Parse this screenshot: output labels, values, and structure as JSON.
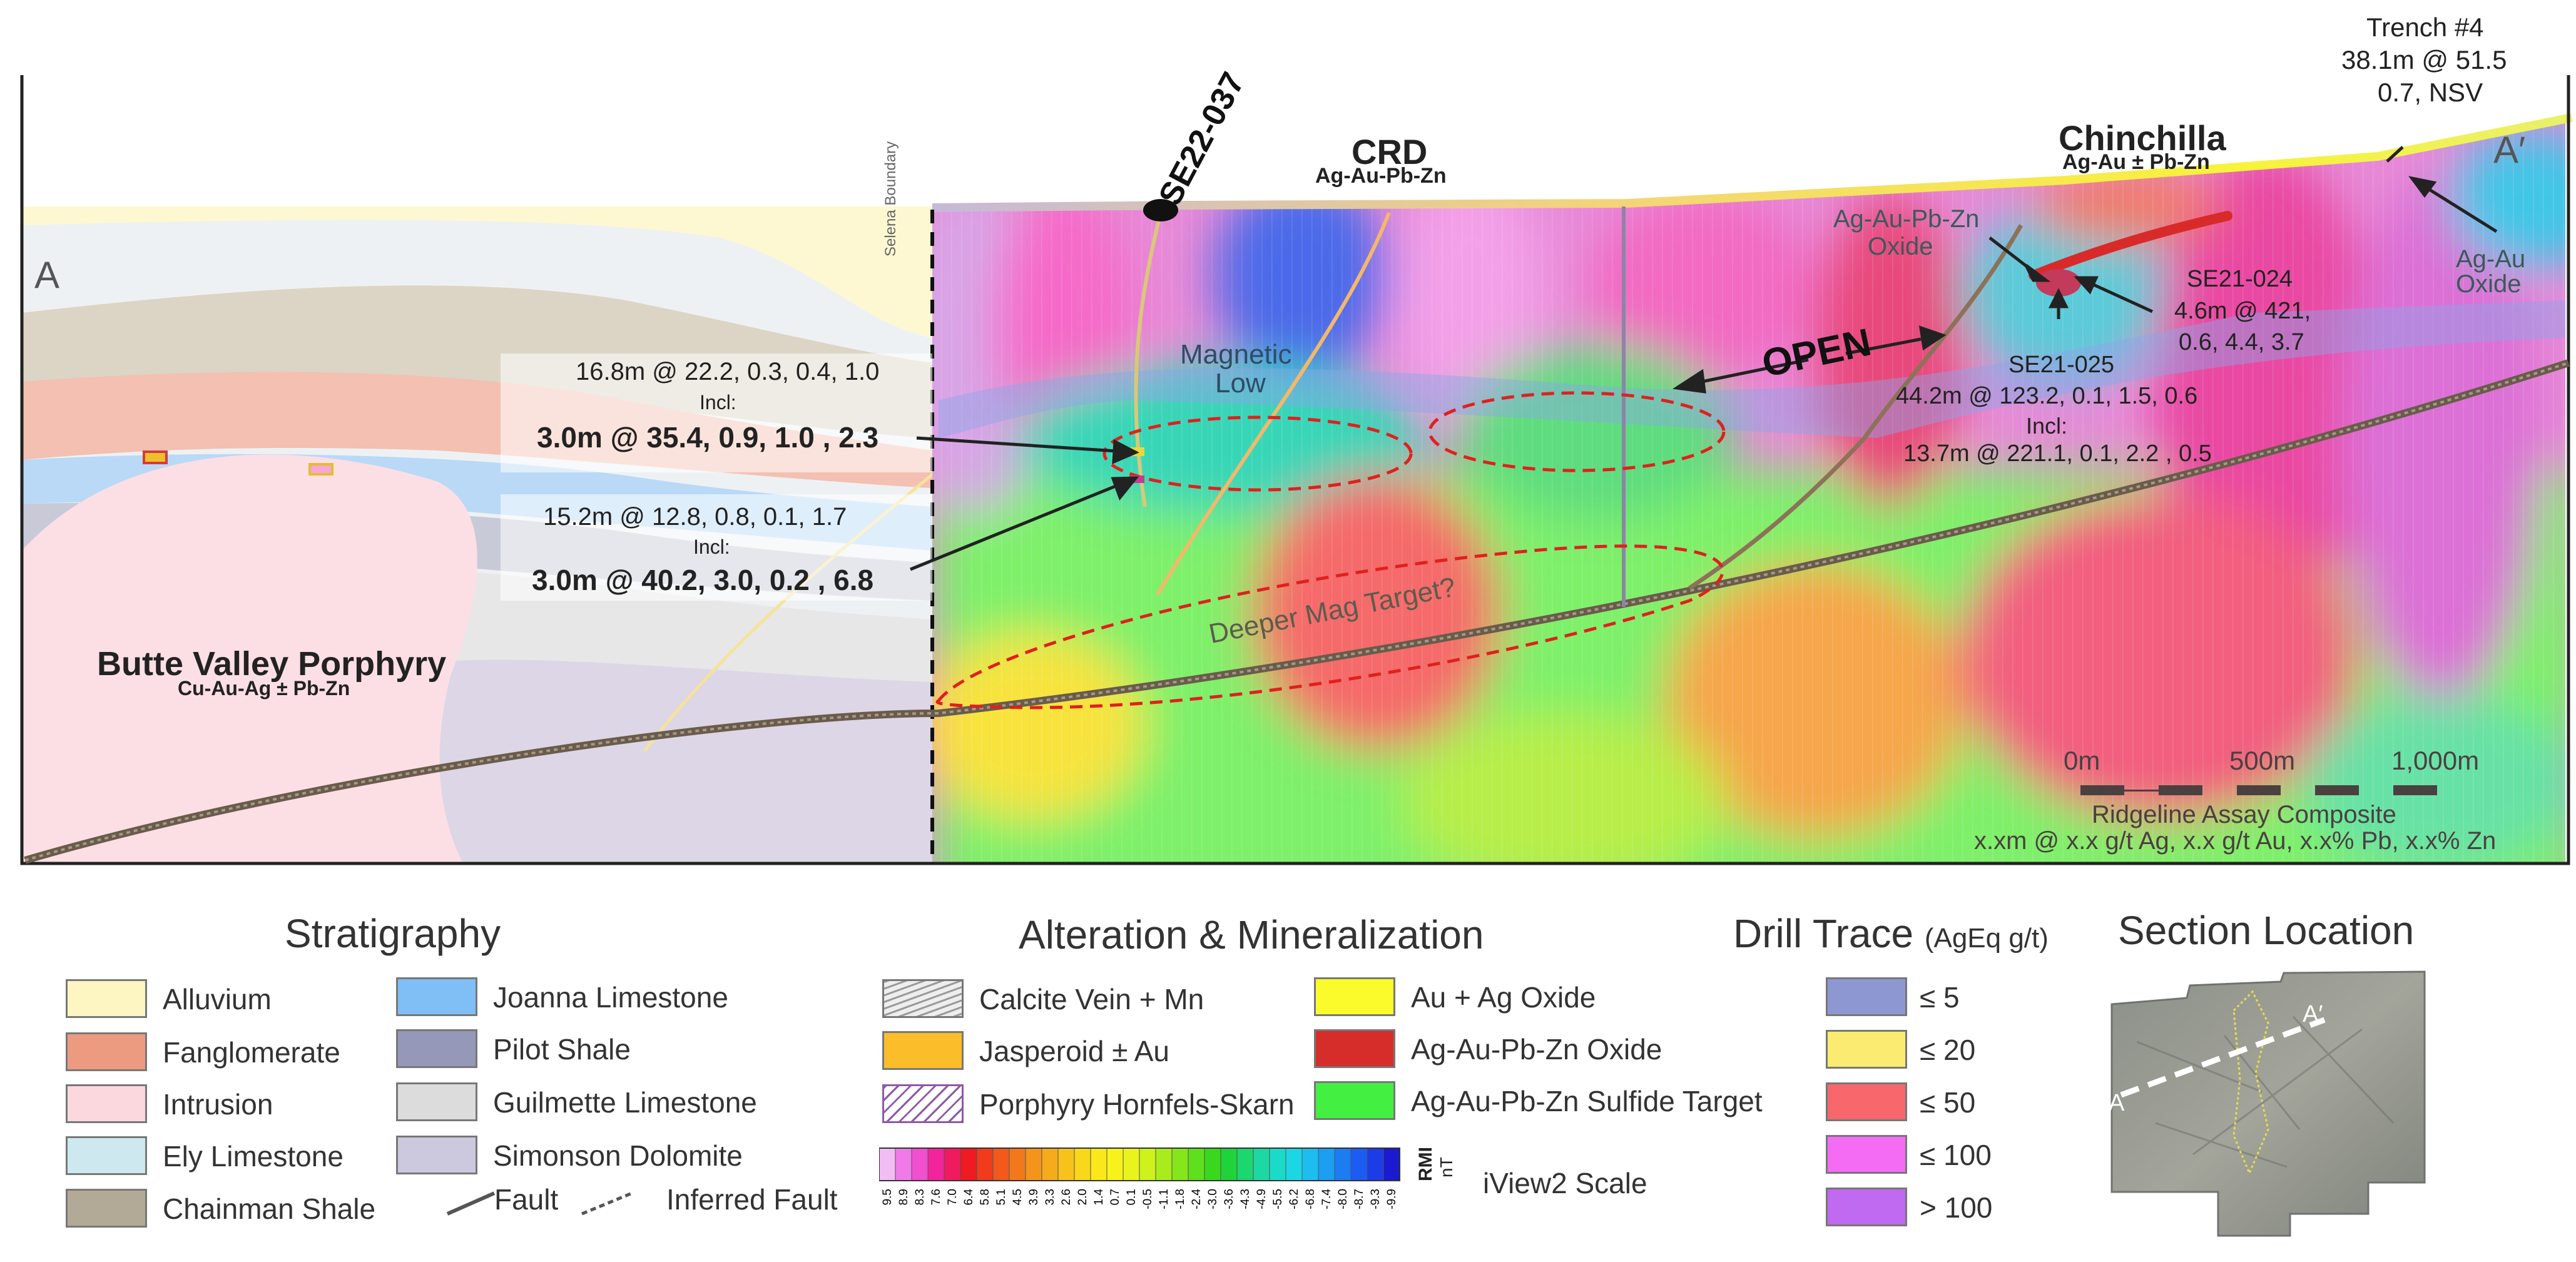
{
  "section": {
    "end_left": "A",
    "end_right": "A′",
    "boundary": "Selena Boundary",
    "drillhole": "SE22-037",
    "crd_title": "CRD",
    "crd_sub": "Ag-Au-Pb-Zn",
    "chinchilla_title": "Chinchilla",
    "chinchilla_sub": "Ag-Au ± Pb-Zn",
    "trench_title": "Trench #4",
    "trench_line1": "38.1m @ 51.5",
    "trench_line2": "0.7, NSV",
    "oxide_label_1": "Ag-Au-Pb-Zn",
    "oxide_label_2": "Oxide",
    "agau_oxide_1": "Ag-Au",
    "agau_oxide_2": "Oxide",
    "se21_024_title": "SE21-024",
    "se21_024_l1": "4.6m @ 421,",
    "se21_024_l2": "0.6, 4.4, 3.7",
    "se21_025_title": "SE21-025",
    "se21_025_l1": "44.2m @ 123.2, 0.1, 1.5, 0.6",
    "se21_025_l2": "Incl:",
    "se21_025_l3": "13.7m @ 221.1, 0.1, 2.2 , 0.5",
    "mag_low_1": "Magnetic",
    "mag_low_2": "Low",
    "open_label": "OPEN",
    "deeper": "Deeper Mag Target?",
    "box1_l1": "16.8m @ 22.2, 0.3, 0.4, 1.0",
    "box1_l2": "Incl:",
    "box1_l3": "3.0m @ 35.4, 0.9, 1.0 , 2.3",
    "box2_l1": "15.2m @ 12.8, 0.8, 0.1, 1.7",
    "box2_l2": "Incl:",
    "box2_l3": "3.0m @ 40.2, 3.0, 0.2 , 6.8",
    "porphyry_title": "Butte Valley Porphyry",
    "porphyry_sub": "Cu-Au-Ag ± Pb-Zn",
    "scale_0": "0m",
    "scale_500": "500m",
    "scale_1000": "1,000m",
    "assay_title": "Ridgeline Assay Composite",
    "assay_format": "x.xm @ x.x g/t Ag, x.x g/t Au, x.x% Pb, x.x% Zn"
  },
  "stratigraphy": {
    "title": "Stratigraphy",
    "units": [
      {
        "label": "Alluvium",
        "color": "#fdf5c2"
      },
      {
        "label": "Fanglomerate",
        "color": "#ec9a80"
      },
      {
        "label": "Intrusion",
        "color": "#fbd7de"
      },
      {
        "label": "Ely Limestone",
        "color": "#cde8ef"
      },
      {
        "label": "Chainman Shale",
        "color": "#b3a997"
      },
      {
        "label": "Joanna Limestone",
        "color": "#7fbff6"
      },
      {
        "label": "Pilot Shale",
        "color": "#9598b8"
      },
      {
        "label": "Guilmette Limestone",
        "color": "#dcdcdc"
      },
      {
        "label": "Simonson Dolomite",
        "color": "#ccc9de"
      }
    ],
    "fault": "Fault",
    "inferred_fault": "Inferred Fault"
  },
  "alteration": {
    "title": "Alteration & Mineralization",
    "items": [
      {
        "label": "Calcite Vein + Mn",
        "color": "#dddddd"
      },
      {
        "label": "Jasperoid ± Au",
        "color": "#fbbd2a"
      },
      {
        "label": "Porphyry Hornfels-Skarn",
        "color": "#ffffff"
      },
      {
        "label": "Au + Ag Oxide",
        "color": "#fbfb2c"
      },
      {
        "label": "Ag-Au-Pb-Zn Oxide",
        "color": "#d72d2a"
      },
      {
        "label": "Ag-Au-Pb-Zn Sulfide Target",
        "color": "#43f042"
      }
    ],
    "rmi_label": "RMI",
    "rmi_unit": "nT",
    "scale_name": "iView2 Scale",
    "ticks": [
      "9.5",
      "8.9",
      "8.3",
      "7.6",
      "7.0",
      "6.4",
      "5.8",
      "5.1",
      "4.5",
      "3.9",
      "3.3",
      "2.6",
      "2.0",
      "1.4",
      "0.7",
      "0.1",
      "-0.5",
      "-1.1",
      "-1.8",
      "-2.4",
      "-3.0",
      "-3.6",
      "-4.3",
      "-4.9",
      "-5.5",
      "-6.2",
      "-6.8",
      "-7.4",
      "-8.0",
      "-8.7",
      "-9.3",
      "-9.9"
    ]
  },
  "drill_trace": {
    "title": "Drill Trace",
    "unit": "(AgEq g/t)",
    "items": [
      {
        "label": "≤ 5",
        "color": "#8d98d2"
      },
      {
        "label": "≤ 20",
        "color": "#fbeb70"
      },
      {
        "label": "≤ 50",
        "color": "#f7676c"
      },
      {
        "label": "≤ 100",
        "color": "#f36cf3"
      },
      {
        "label": "> 100",
        "color": "#c069f1"
      }
    ]
  },
  "location": {
    "title": "Section Location",
    "a": "A",
    "a_prime": "A′"
  }
}
